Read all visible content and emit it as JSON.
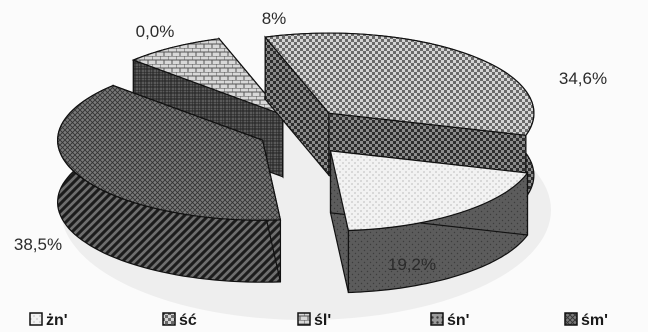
{
  "chart_data": {
    "type": "pie",
    "style": "3d-exploded",
    "legend_placement": "bottom",
    "slices": [
      {
        "name": "żn'",
        "value": 19.2,
        "label": "19,2%",
        "fill": "#ececec"
      },
      {
        "name": "ść",
        "value": 34.6,
        "label": "34,6%",
        "fill": "#bdbdbd"
      },
      {
        "name": "śl'",
        "value": 8,
        "label": "8%",
        "fill": "#a9a9a9"
      },
      {
        "name": "śn'",
        "value": 0.0,
        "label": "0,0%",
        "fill": "#c8c8c8"
      },
      {
        "name": "śm'",
        "value": 38.5,
        "label": "38,5%",
        "fill": "#8a8a8a"
      }
    ]
  }
}
